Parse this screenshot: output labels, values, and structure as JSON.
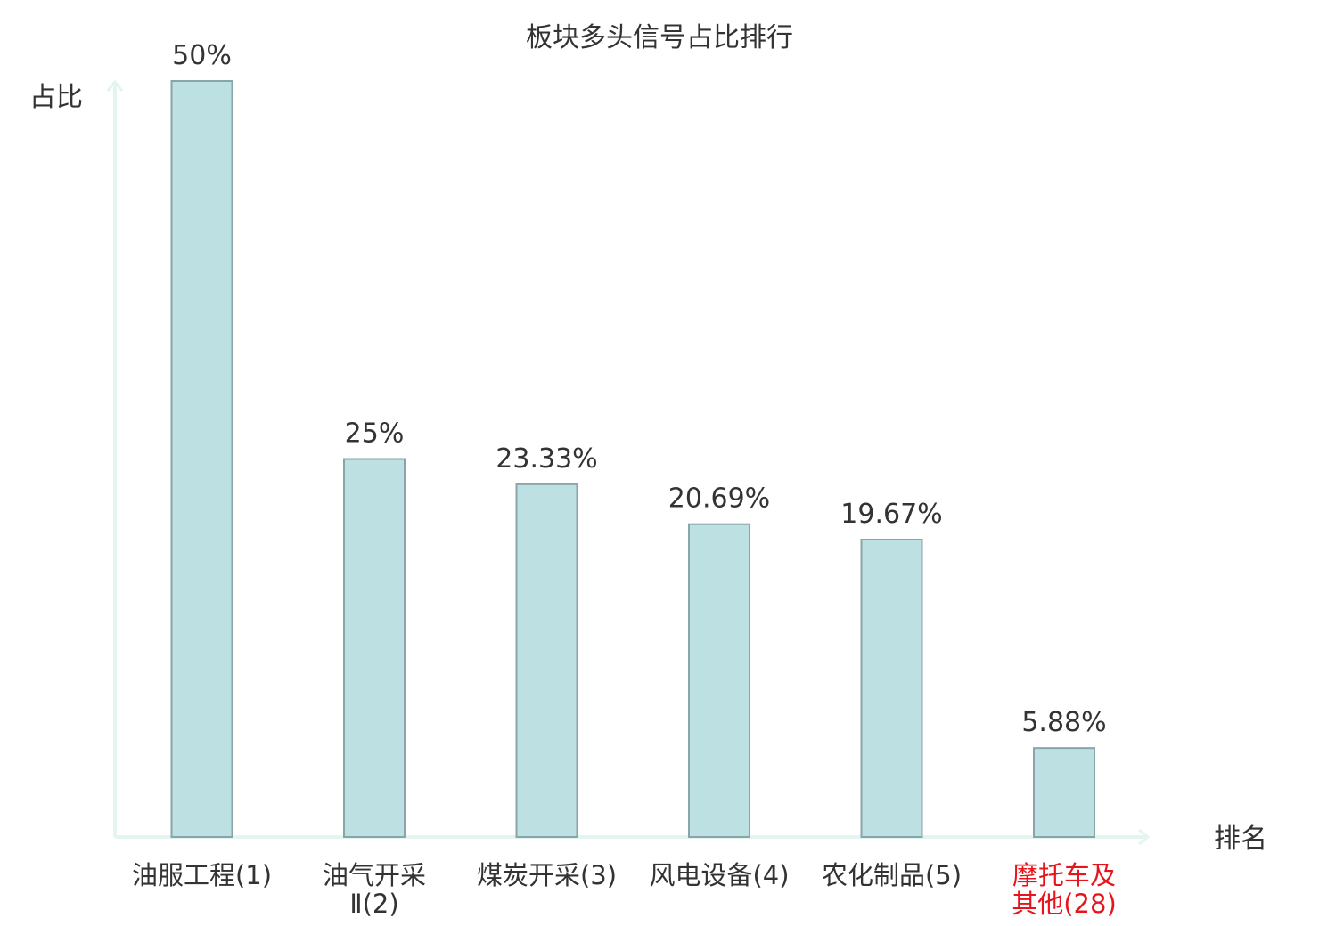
{
  "chart_data": {
    "type": "bar",
    "title": "板块多头信号占比排行",
    "ylabel": "占比",
    "xlabel": "排名",
    "categories": [
      [
        "油服工程(1)"
      ],
      [
        "油气开采",
        "Ⅱ(2)"
      ],
      [
        "煤炭开采(3)"
      ],
      [
        "风电设备(4)"
      ],
      [
        "农化制品(5)"
      ],
      [
        "摩托车及",
        "其他(28)"
      ]
    ],
    "values": [
      50,
      25,
      23.33,
      20.69,
      19.67,
      5.88
    ],
    "value_labels": [
      "50%",
      "25%",
      "23.33%",
      "20.69%",
      "19.67%",
      "5.88%"
    ],
    "ylim": [
      0,
      50
    ],
    "highlight_index": 5,
    "grid": false,
    "colors": {
      "bar_fill": "#bde0e3",
      "bar_stroke": "#8aa5a8",
      "axis": "#e3f4f1",
      "text": "#333333",
      "highlight_text": "#e8141c"
    }
  }
}
